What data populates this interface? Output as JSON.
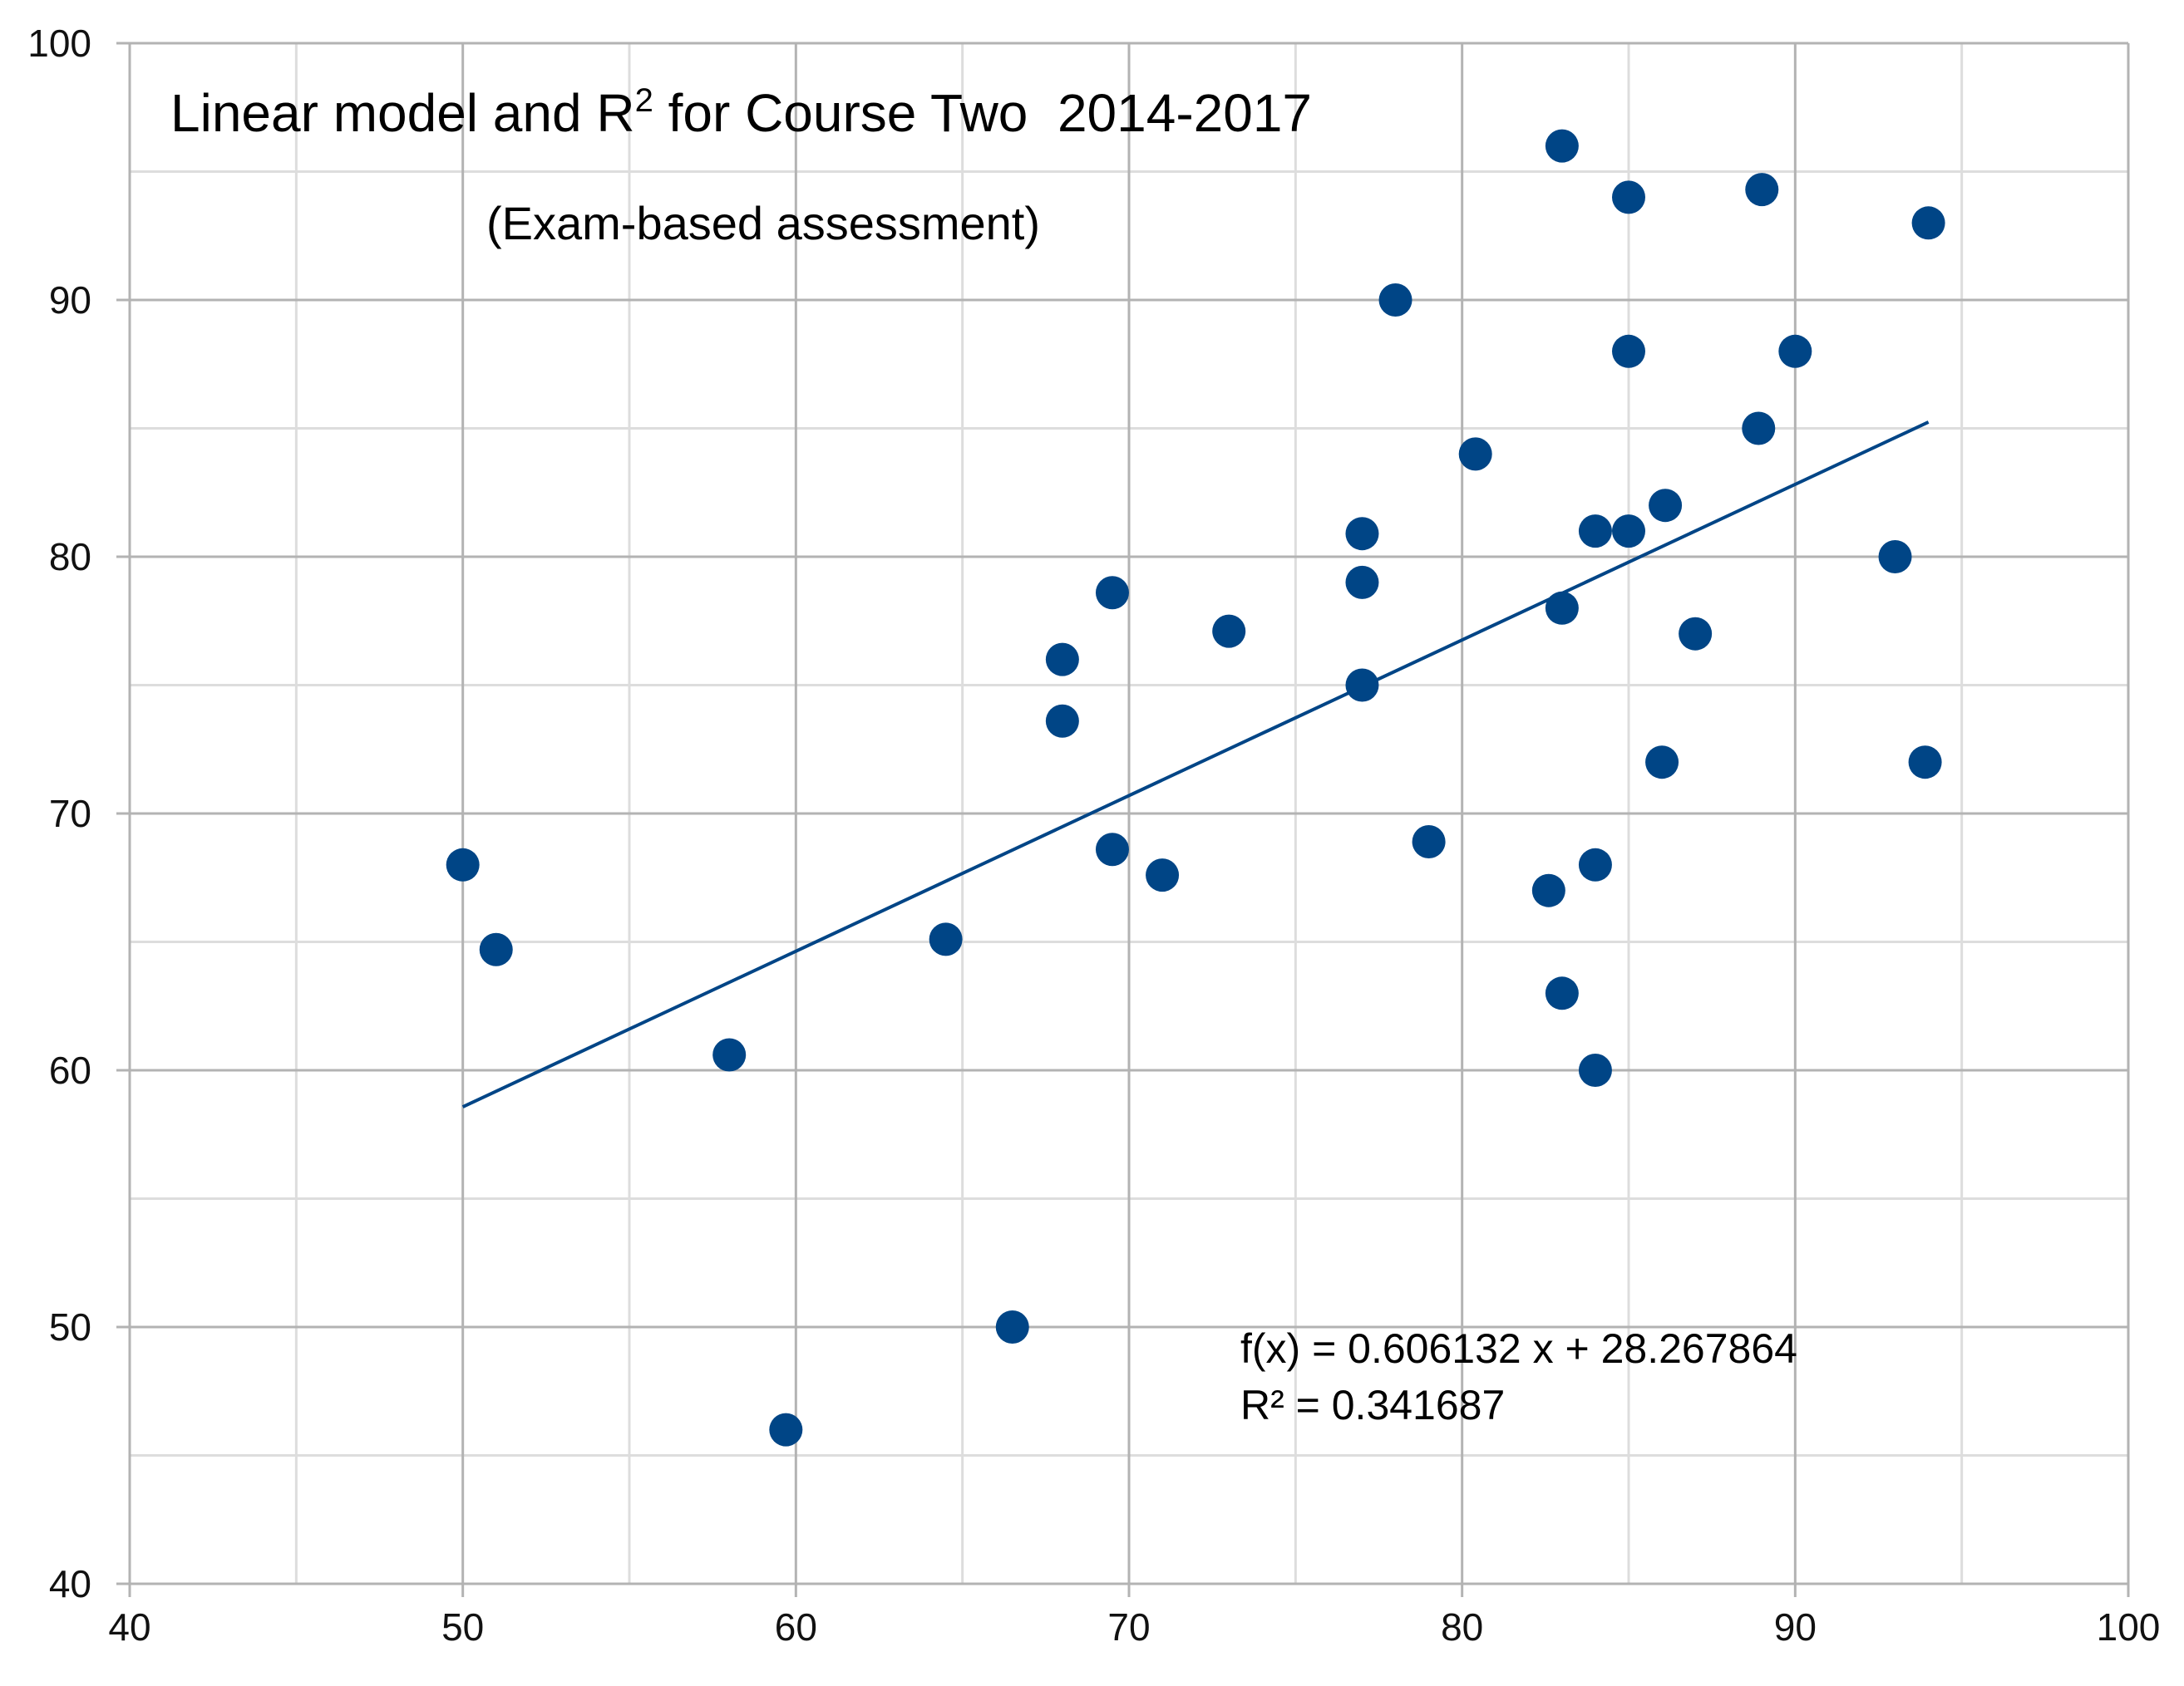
{
  "chart_data": {
    "type": "scatter",
    "title_main": "Linear model and R",
    "title_sup": "2",
    "title_rest": " for Course Two  2014-2017",
    "subtitle": "(Exam-based assessment)",
    "xlabel": "",
    "ylabel": "",
    "xlim": [
      40,
      100
    ],
    "ylim": [
      40,
      100
    ],
    "x_major": 10,
    "x_minor": 5,
    "y_major": 10,
    "y_minor": 5,
    "x_ticks": [
      "40",
      "50",
      "60",
      "70",
      "80",
      "90",
      "100"
    ],
    "y_ticks": [
      "40",
      "50",
      "60",
      "70",
      "80",
      "90",
      "100"
    ],
    "grid": true,
    "legend": "none",
    "series": [
      {
        "name": "Course Two",
        "color": "#004586",
        "points": [
          {
            "x": 50,
            "y": 68
          },
          {
            "x": 51,
            "y": 64.7
          },
          {
            "x": 58,
            "y": 60.6
          },
          {
            "x": 59.7,
            "y": 46
          },
          {
            "x": 64.5,
            "y": 65.1
          },
          {
            "x": 66.5,
            "y": 50
          },
          {
            "x": 68,
            "y": 76
          },
          {
            "x": 68,
            "y": 73.6
          },
          {
            "x": 69.5,
            "y": 78.6
          },
          {
            "x": 69.5,
            "y": 68.6
          },
          {
            "x": 71,
            "y": 67.6
          },
          {
            "x": 73,
            "y": 77.1
          },
          {
            "x": 77,
            "y": 80.9
          },
          {
            "x": 77,
            "y": 79
          },
          {
            "x": 77,
            "y": 75
          },
          {
            "x": 78,
            "y": 90
          },
          {
            "x": 79,
            "y": 68.9
          },
          {
            "x": 80.4,
            "y": 84
          },
          {
            "x": 82.6,
            "y": 67
          },
          {
            "x": 83,
            "y": 96
          },
          {
            "x": 83,
            "y": 78
          },
          {
            "x": 83,
            "y": 63
          },
          {
            "x": 84,
            "y": 81
          },
          {
            "x": 84,
            "y": 68
          },
          {
            "x": 84,
            "y": 60
          },
          {
            "x": 85,
            "y": 94
          },
          {
            "x": 85,
            "y": 88
          },
          {
            "x": 85,
            "y": 81
          },
          {
            "x": 86,
            "y": 72
          },
          {
            "x": 86.1,
            "y": 82
          },
          {
            "x": 87,
            "y": 77
          },
          {
            "x": 88.9,
            "y": 85
          },
          {
            "x": 89,
            "y": 94.3
          },
          {
            "x": 90,
            "y": 88
          },
          {
            "x": 93,
            "y": 80
          },
          {
            "x": 93.9,
            "y": 72
          },
          {
            "x": 94,
            "y": 93
          }
        ]
      }
    ],
    "trendline": {
      "slope": 0.606132,
      "intercept": 28.267864,
      "x_start": 50,
      "x_end": 94
    },
    "equation_label": "f(x) = 0.606132 x + 28.267864",
    "r2_label": "R² = 0.341687"
  }
}
